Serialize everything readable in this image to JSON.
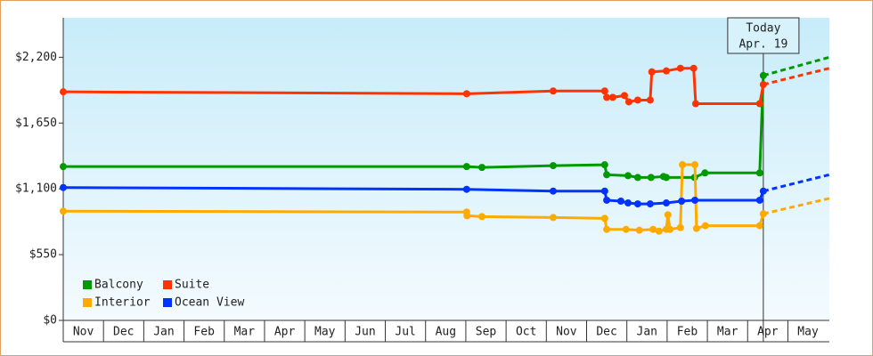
{
  "chart_data": {
    "type": "line",
    "annotation": {
      "title": "Today",
      "date": "Apr. 19",
      "x": 17.39
    },
    "categories": [
      "Nov",
      "Dec",
      "Jan",
      "Feb",
      "Mar",
      "Apr",
      "May",
      "Jun",
      "Jul",
      "Aug",
      "Sep",
      "Oct",
      "Nov",
      "Dec",
      "Jan",
      "Feb",
      "Mar",
      "Apr",
      "May"
    ],
    "xlim": [
      0,
      19.03
    ],
    "ylim": [
      0,
      2530
    ],
    "yticks": [
      {
        "value": 0,
        "label": "$0"
      },
      {
        "value": 550,
        "label": "$550"
      },
      {
        "value": 1100,
        "label": "$1,100"
      },
      {
        "value": 1650,
        "label": "$1,650"
      },
      {
        "value": 2200,
        "label": "$2,200"
      }
    ],
    "projection_x": [
      17.39,
      19.03
    ],
    "series": [
      {
        "name": "Balcony",
        "color": "#009900",
        "x": [
          0,
          10.02,
          10.4,
          12.17,
          13.45,
          13.5,
          14.03,
          14.27,
          14.6,
          14.91,
          14.98,
          15.68,
          15.94,
          17.3,
          17.39
        ],
        "values": [
          1286,
          1286,
          1279,
          1294,
          1301,
          1218,
          1210,
          1195,
          1195,
          1203,
          1195,
          1195,
          1233,
          1233,
          2048
        ],
        "projection": [
          2048,
          2200
        ]
      },
      {
        "name": "Suite",
        "color": "#ff3300",
        "x": [
          0,
          10.02,
          12.17,
          13.45,
          13.5,
          13.65,
          13.94,
          14.05,
          14.27,
          14.58,
          14.62,
          14.98,
          15.33,
          15.66,
          15.71,
          17.3,
          17.39
        ],
        "values": [
          1911,
          1895,
          1918,
          1918,
          1865,
          1865,
          1880,
          1827,
          1842,
          1842,
          2078,
          2086,
          2108,
          2108,
          1812,
          1812,
          1972
        ],
        "projection": [
          1972,
          2108
        ]
      },
      {
        "name": "Interior",
        "color": "#ffaa00",
        "x": [
          0,
          10.02,
          10.03,
          10.4,
          12.17,
          13.45,
          13.5,
          13.98,
          14.31,
          14.65,
          14.8,
          14.98,
          15.02,
          15.07,
          15.33,
          15.38,
          15.69,
          15.73,
          15.95,
          17.3,
          17.39
        ],
        "values": [
          913,
          906,
          875,
          868,
          860,
          853,
          761,
          761,
          754,
          761,
          746,
          761,
          883,
          761,
          776,
          1302,
          1302,
          769,
          792,
          792,
          891
        ],
        "projection": [
          891,
          1020
        ]
      },
      {
        "name": "Ocean View",
        "color": "#0033ff",
        "x": [
          0,
          10.02,
          12.17,
          13.45,
          13.5,
          13.85,
          14.03,
          14.27,
          14.58,
          14.98,
          15.36,
          15.69,
          17.3,
          17.39
        ],
        "values": [
          1111,
          1096,
          1081,
          1081,
          1005,
          997,
          982,
          974,
          974,
          982,
          997,
          1005,
          1005,
          1081
        ],
        "projection": [
          1081,
          1218
        ]
      }
    ]
  }
}
